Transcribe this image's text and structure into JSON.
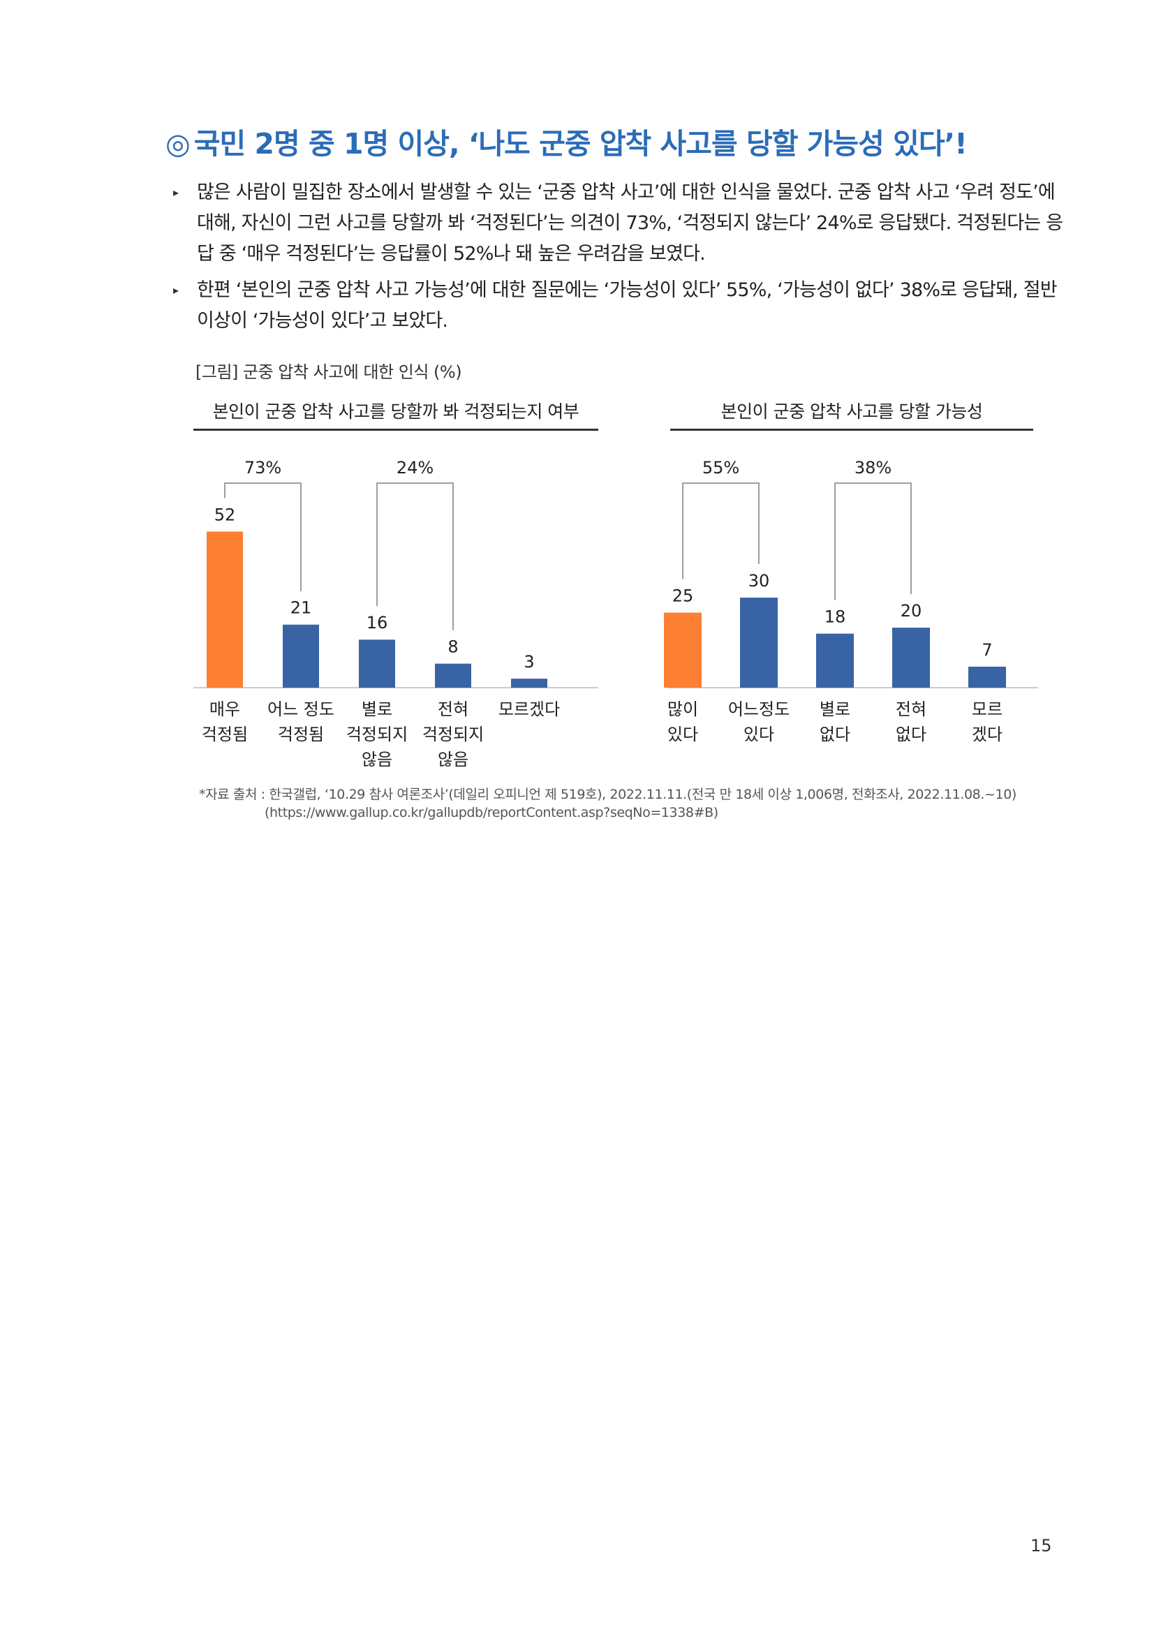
{
  "heading": {
    "mark": "◎",
    "text": "국민 2명 중 1명 이상, ‘나도 군중 압착 사고를 당할 가능성 있다’!"
  },
  "bullets": [
    "많은 사람이 밀집한 장소에서 발생할 수 있는 ‘군중 압착 사고’에 대한 인식을 물었다. 군중 압착 사고 ‘우려 정도’에 대해, 자신이 그런 사고를 당할까 봐 ‘걱정된다’는 의견이 73%, ‘걱정되지 않는다’ 24%로 응답됐다. 걱정된다는 응답 중 ‘매우 걱정된다’는 응답률이 52%나 돼 높은 우려감을 보였다.",
    "한편 ‘본인의 군중 압착 사고 가능성’에 대한 질문에는 ‘가능성이 있다’ 55%, ‘가능성이 없다’ 38%로 응답돼, 절반 이상이 ‘가능성이 있다’고 보았다."
  ],
  "figure_caption": "[그림] 군중 압착 사고에 대한 인식 (%)",
  "chart_data": [
    {
      "type": "bar",
      "title": "본인이 군중 압착 사고를 당할까 봐 걱정되는지 여부",
      "categories": [
        [
          "매우",
          "걱정됨"
        ],
        [
          "어느 정도",
          "걱정됨"
        ],
        [
          "별로",
          "걱정되지",
          "않음"
        ],
        [
          "전혀",
          "걱정되지",
          "않음"
        ],
        [
          "모르겠다"
        ]
      ],
      "values": [
        52,
        21,
        16,
        8,
        3
      ],
      "colors": [
        "#fd7f32",
        "#3864a5",
        "#3864a5",
        "#3864a5",
        "#3864a5"
      ],
      "brackets": [
        {
          "label": "73%",
          "from": 0,
          "to": 1
        },
        {
          "label": "24%",
          "from": 2,
          "to": 3
        }
      ],
      "ylim": [
        0,
        60
      ]
    },
    {
      "type": "bar",
      "title": "본인이 군중 압착 사고를 당할 가능성",
      "categories": [
        [
          "많이",
          "있다"
        ],
        [
          "어느정도",
          "있다"
        ],
        [
          "별로",
          "없다"
        ],
        [
          "전혀",
          "없다"
        ],
        [
          "모르",
          "겠다"
        ]
      ],
      "values": [
        25,
        30,
        18,
        20,
        7
      ],
      "colors": [
        "#fd7f32",
        "#3864a5",
        "#3864a5",
        "#3864a5",
        "#3864a5"
      ],
      "brackets": [
        {
          "label": "55%",
          "from": 0,
          "to": 1
        },
        {
          "label": "38%",
          "from": 2,
          "to": 3
        }
      ],
      "ylim": [
        0,
        60
      ]
    }
  ],
  "source": {
    "line1": "*자료 출처 : 한국갤럽, ‘10.29 참사 여론조사’(데일리 오피니언 제 519호), 2022.11.11.(전국 만 18세 이상 1,006명, 전화조사, 2022.11.08.~10)",
    "line2": "(https://www.gallup.co.kr/gallupdb/reportContent.asp?seqNo=1338#B)"
  },
  "page_number": "15"
}
